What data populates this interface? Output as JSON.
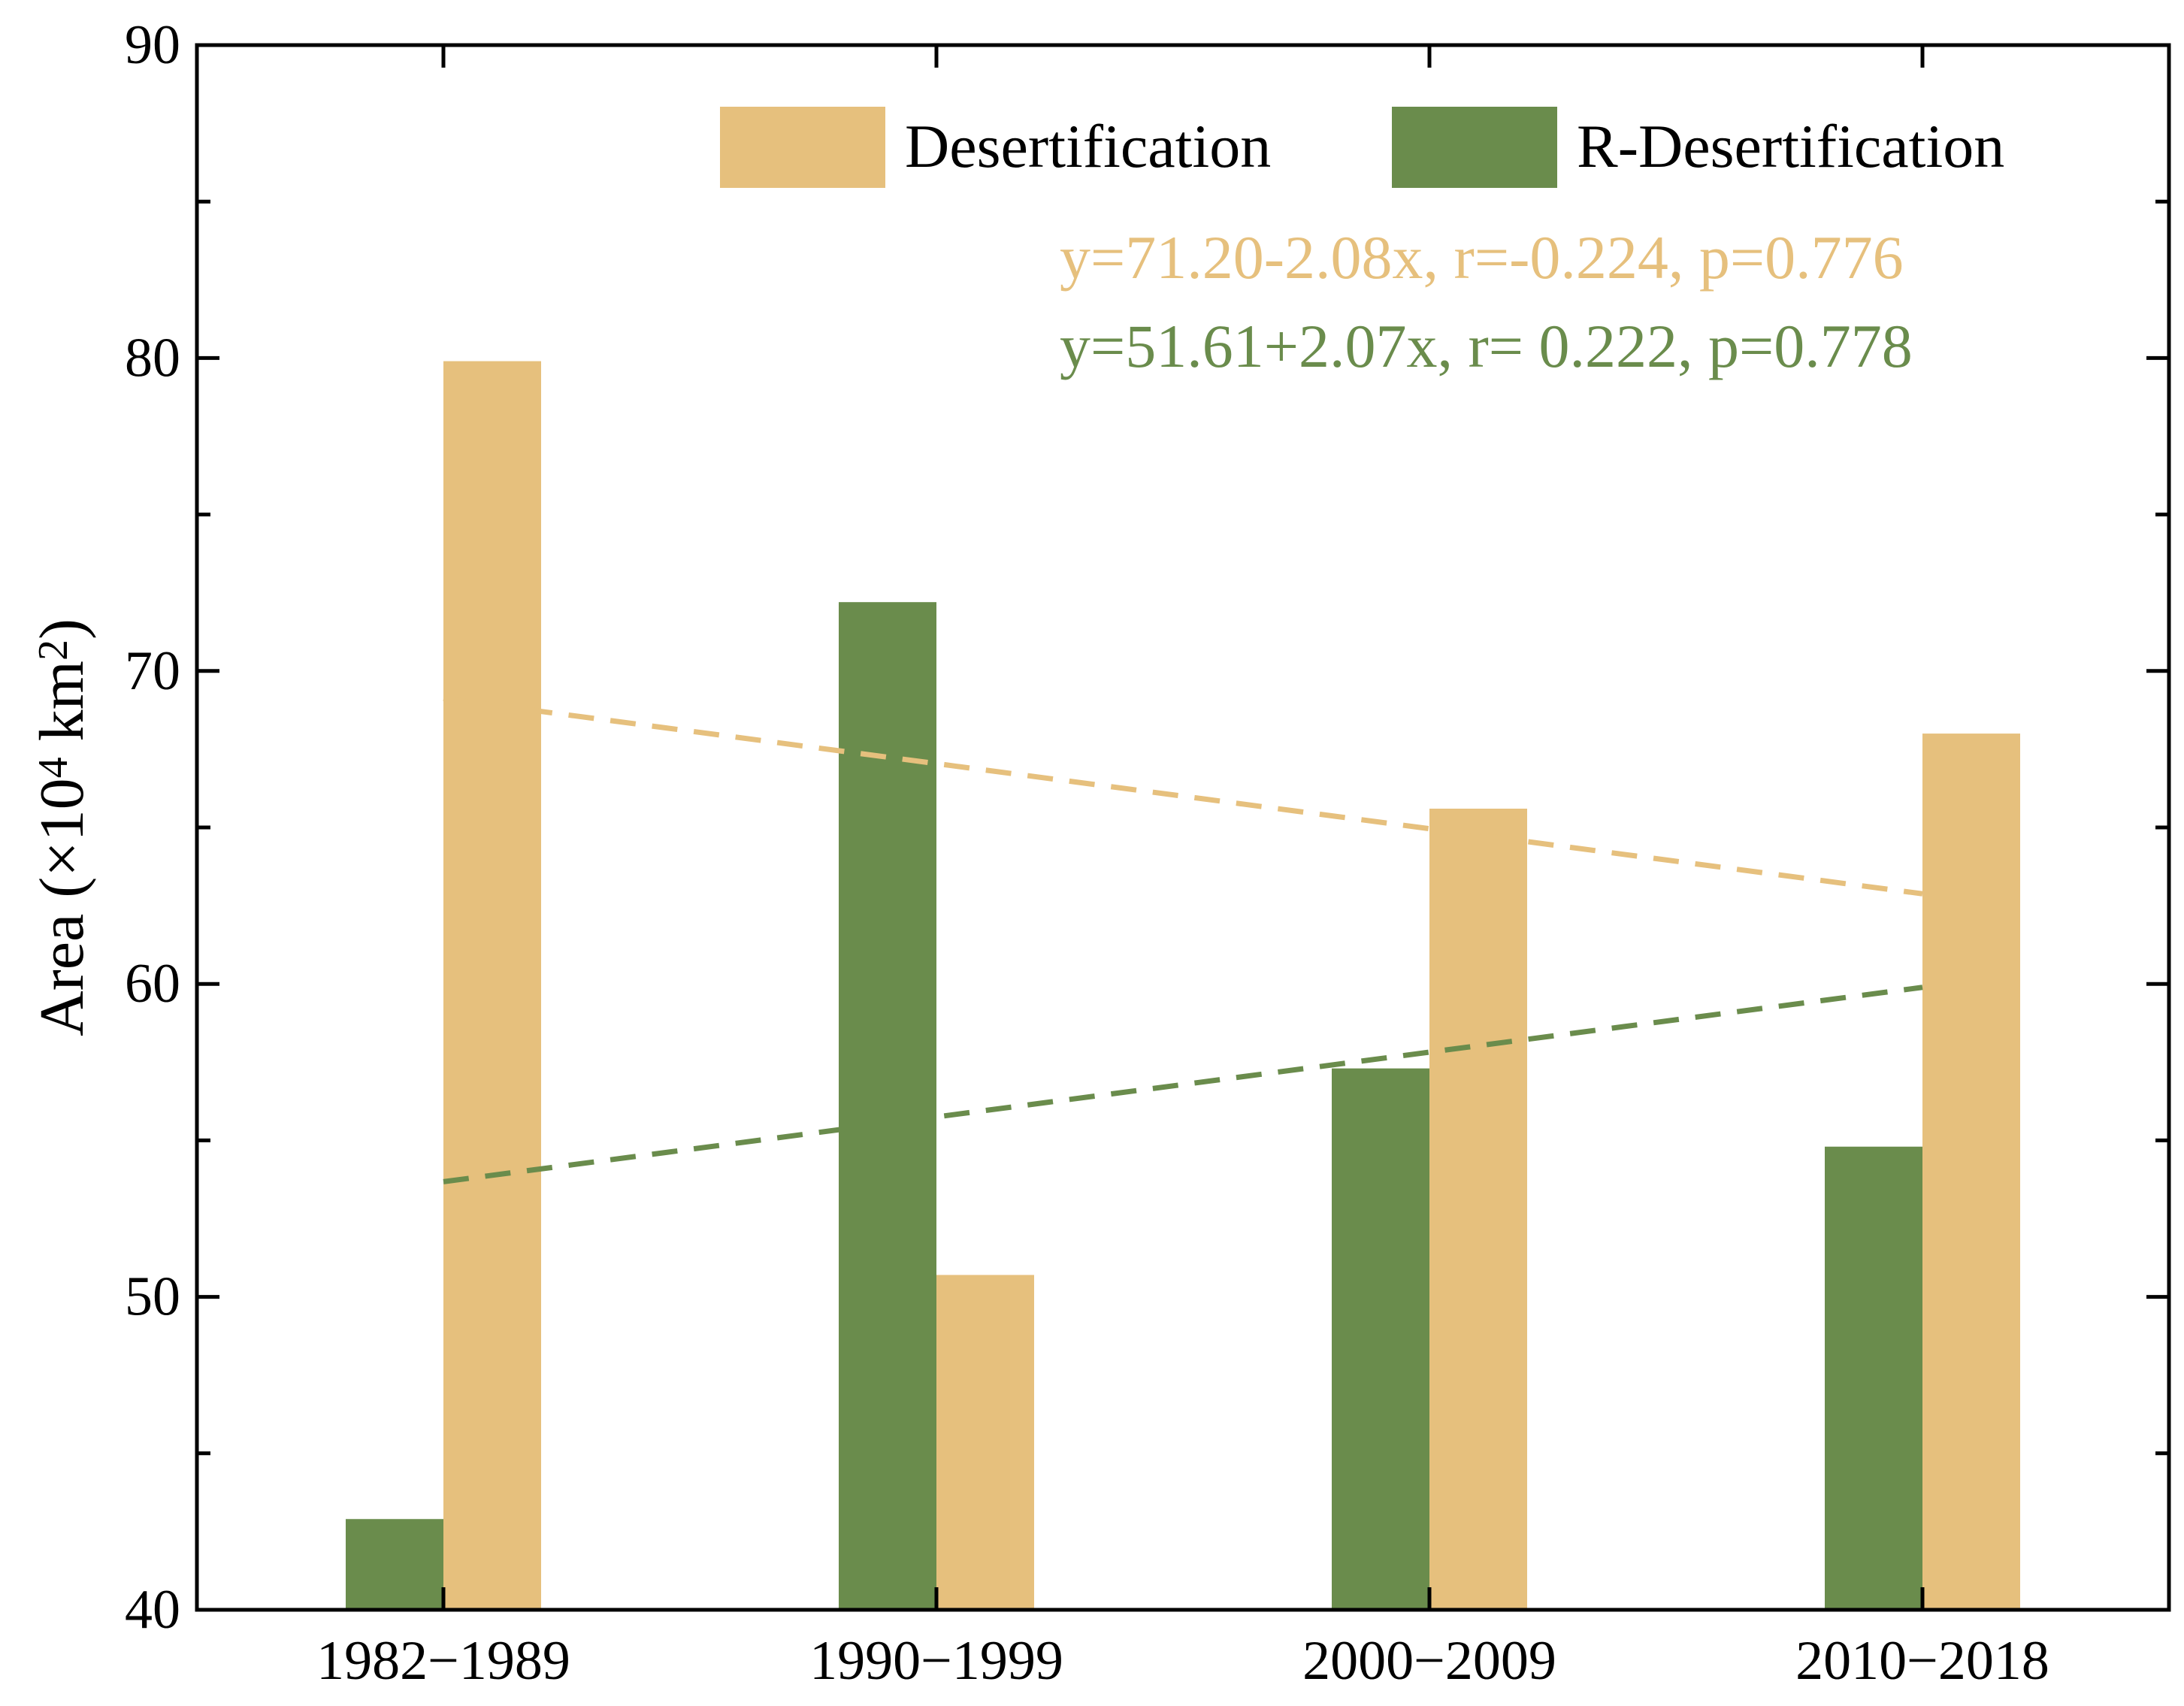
{
  "chart_data": {
    "type": "bar",
    "categories": [
      "1982−1989",
      "1990−1999",
      "2000−2009",
      "2010−2018"
    ],
    "series": [
      {
        "name": "R-Desertification",
        "values": [
          42.9,
          72.2,
          57.3,
          54.8
        ],
        "color": "#6a8c4c"
      },
      {
        "name": "Desertification",
        "values": [
          79.9,
          50.7,
          65.6,
          68.0
        ],
        "color": "#e6c07d"
      }
    ],
    "trendlines": [
      {
        "series": "Desertification",
        "intercept": 71.2,
        "slope": -2.08,
        "color": "#e6c07d",
        "label": "y=71.20-2.08x, r=-0.224, p=0.776"
      },
      {
        "series": "R-Desertification",
        "intercept": 51.61,
        "slope": 2.07,
        "color": "#6a8c4c",
        "label": "y=51.61+2.07x, r= 0.222, p=0.778"
      }
    ],
    "ylabel": "Area (×10",
    "ylabel_sup1": "4",
    "ylabel_mid": " km",
    "ylabel_sup2": "2",
    "ylabel_end": ")",
    "ylim": [
      40,
      90
    ],
    "yticks": [
      40,
      50,
      60,
      70,
      80,
      90
    ],
    "legend_position": "top-right",
    "grid": false
  }
}
